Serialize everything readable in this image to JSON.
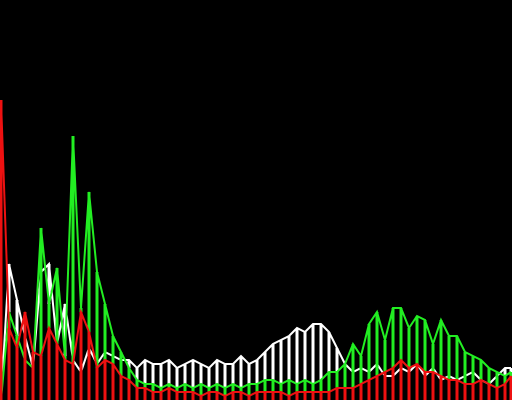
{
  "chart_data": {
    "type": "line",
    "title": "",
    "xlabel": "",
    "ylabel": "",
    "xlim": [
      0,
      255
    ],
    "ylim": [
      0,
      1
    ],
    "grid": false,
    "legend": "none",
    "background": "#000000",
    "x": [
      0,
      4,
      8,
      12,
      16,
      20,
      24,
      28,
      32,
      36,
      40,
      44,
      48,
      52,
      56,
      60,
      64,
      68,
      72,
      76,
      80,
      84,
      88,
      92,
      96,
      100,
      104,
      108,
      112,
      116,
      120,
      124,
      128,
      132,
      136,
      140,
      144,
      148,
      152,
      156,
      160,
      164,
      168,
      172,
      176,
      180,
      184,
      188,
      192,
      196,
      200,
      204,
      208,
      212,
      216,
      220,
      224,
      228,
      232,
      236,
      240,
      244,
      248,
      252,
      255
    ],
    "series": [
      {
        "color": "#ffffff",
        "values": [
          0.0,
          0.34,
          0.25,
          0.16,
          0.08,
          0.32,
          0.34,
          0.14,
          0.24,
          0.1,
          0.07,
          0.13,
          0.09,
          0.12,
          0.11,
          0.1,
          0.1,
          0.08,
          0.1,
          0.09,
          0.09,
          0.1,
          0.08,
          0.09,
          0.1,
          0.09,
          0.08,
          0.1,
          0.09,
          0.09,
          0.11,
          0.09,
          0.1,
          0.12,
          0.14,
          0.15,
          0.16,
          0.18,
          0.17,
          0.19,
          0.19,
          0.17,
          0.13,
          0.09,
          0.07,
          0.08,
          0.07,
          0.09,
          0.06,
          0.06,
          0.08,
          0.07,
          0.09,
          0.06,
          0.08,
          0.05,
          0.06,
          0.05,
          0.06,
          0.07,
          0.05,
          0.04,
          0.06,
          0.08,
          0.08
        ]
      },
      {
        "color": "#22ee22",
        "values": [
          0.0,
          0.22,
          0.16,
          0.1,
          0.08,
          0.43,
          0.24,
          0.33,
          0.11,
          0.66,
          0.23,
          0.52,
          0.32,
          0.24,
          0.16,
          0.12,
          0.08,
          0.05,
          0.04,
          0.04,
          0.03,
          0.04,
          0.03,
          0.04,
          0.03,
          0.04,
          0.03,
          0.04,
          0.03,
          0.04,
          0.03,
          0.04,
          0.04,
          0.05,
          0.05,
          0.04,
          0.05,
          0.04,
          0.05,
          0.04,
          0.05,
          0.07,
          0.07,
          0.09,
          0.14,
          0.11,
          0.19,
          0.22,
          0.15,
          0.23,
          0.23,
          0.18,
          0.21,
          0.2,
          0.14,
          0.2,
          0.16,
          0.16,
          0.12,
          0.11,
          0.1,
          0.08,
          0.07,
          0.06,
          0.07
        ]
      },
      {
        "color": "#ee1111",
        "values": [
          0.75,
          0.18,
          0.13,
          0.22,
          0.12,
          0.11,
          0.18,
          0.14,
          0.1,
          0.09,
          0.22,
          0.17,
          0.08,
          0.1,
          0.09,
          0.06,
          0.05,
          0.03,
          0.03,
          0.02,
          0.02,
          0.03,
          0.02,
          0.02,
          0.02,
          0.01,
          0.02,
          0.02,
          0.01,
          0.02,
          0.02,
          0.01,
          0.02,
          0.02,
          0.02,
          0.02,
          0.01,
          0.02,
          0.02,
          0.02,
          0.02,
          0.02,
          0.03,
          0.03,
          0.03,
          0.04,
          0.05,
          0.06,
          0.07,
          0.08,
          0.1,
          0.08,
          0.09,
          0.07,
          0.07,
          0.06,
          0.05,
          0.05,
          0.04,
          0.04,
          0.05,
          0.04,
          0.03,
          0.04,
          0.06
        ]
      }
    ]
  }
}
